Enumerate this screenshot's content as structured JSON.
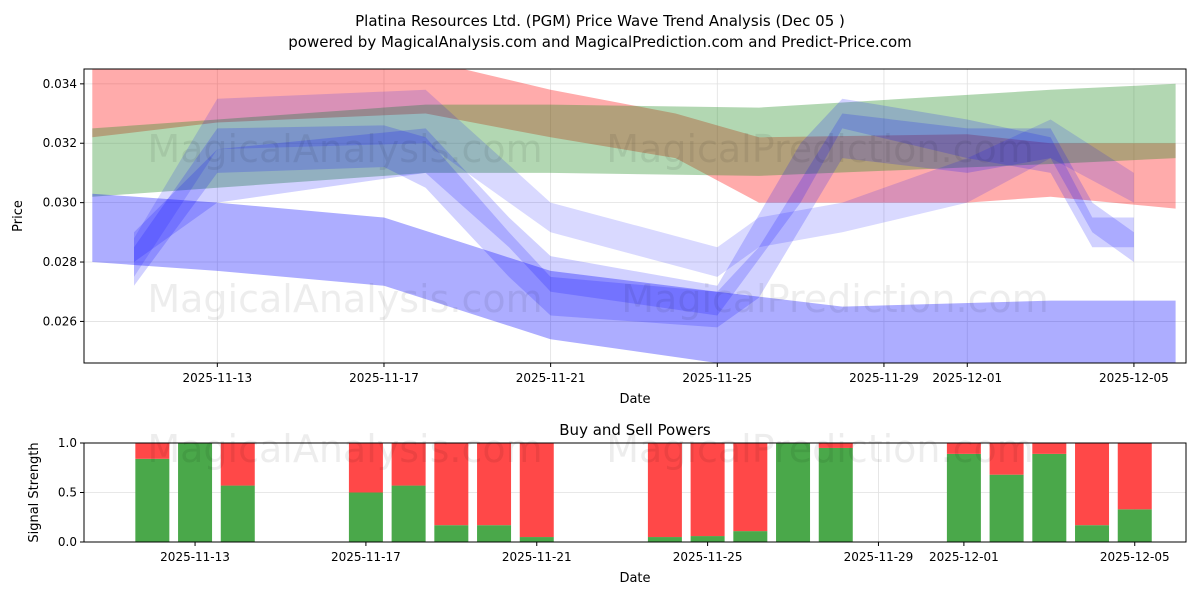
{
  "title_line1": "Platina Resources Ltd. (PGM) Price Wave Trend Analysis (Dec 05 )",
  "title_line2": "powered by MagicalAnalysis.com and MagicalPrediction.com and Predict-Price.com",
  "watermarks": [
    "MagicalAnalysis.com",
    "MagicalPrediction.com"
  ],
  "chart_data": [
    {
      "type": "area",
      "title": "",
      "xlabel": "Date",
      "ylabel": "Price",
      "xlim": [
        "2025-11-09.8",
        "2025-12-06.25"
      ],
      "ylim": [
        0.0246,
        0.0345
      ],
      "xticks": [
        "2025-11-13",
        "2025-11-17",
        "2025-11-21",
        "2025-11-25",
        "2025-11-29",
        "2025-12-01",
        "2025-12-05"
      ],
      "yticks": [
        "0.026",
        "0.028",
        "0.030",
        "0.032",
        "0.034"
      ],
      "grid": true,
      "bands": [
        {
          "name": "red",
          "color": "#ff0000",
          "opacity": 0.33,
          "points": [
            [
              "2025-11-10",
              0.0322,
              0.0346
            ],
            [
              "2025-11-13",
              0.0327,
              0.0348
            ],
            [
              "2025-11-18",
              0.033,
              0.0348
            ],
            [
              "2025-11-21",
              0.0322,
              0.0338
            ],
            [
              "2025-11-24",
              0.0315,
              0.033
            ],
            [
              "2025-11-26",
              0.03,
              0.0322
            ],
            [
              "2025-12-01",
              0.03,
              0.0323
            ],
            [
              "2025-12-03",
              0.0302,
              0.032
            ],
            [
              "2025-12-06",
              0.0298,
              0.032
            ]
          ]
        },
        {
          "name": "green",
          "color": "#228b22",
          "opacity": 0.35,
          "points": [
            [
              "2025-11-10",
              0.0302,
              0.0325
            ],
            [
              "2025-11-13",
              0.0305,
              0.0328
            ],
            [
              "2025-11-18",
              0.031,
              0.0333
            ],
            [
              "2025-11-21",
              0.031,
              0.0333
            ],
            [
              "2025-11-26",
              0.0309,
              0.0332
            ],
            [
              "2025-12-03",
              0.0313,
              0.0338
            ],
            [
              "2025-12-06",
              0.0315,
              0.034
            ]
          ]
        },
        {
          "name": "blue-low",
          "color": "#0000ff",
          "opacity": 0.32,
          "points": [
            [
              "2025-11-10",
              0.028,
              0.0303
            ],
            [
              "2025-11-13",
              0.0277,
              0.03
            ],
            [
              "2025-11-17",
              0.0272,
              0.0295
            ],
            [
              "2025-11-21",
              0.0254,
              0.0277
            ],
            [
              "2025-11-25",
              0.0246,
              0.027
            ],
            [
              "2025-11-28",
              0.0242,
              0.0265
            ],
            [
              "2025-12-03",
              0.0244,
              0.0267
            ],
            [
              "2025-12-06",
              0.0244,
              0.0267
            ]
          ]
        },
        {
          "name": "blue-wave-1",
          "color": "#0000ff",
          "opacity": 0.18,
          "points": [
            [
              "2025-11-11",
              0.0272,
              0.0285
            ],
            [
              "2025-11-13",
              0.031,
              0.0325
            ],
            [
              "2025-11-17",
              0.0312,
              0.0326
            ],
            [
              "2025-11-18",
              0.0305,
              0.0322
            ],
            [
              "2025-11-20",
              0.0275,
              0.029
            ],
            [
              "2025-11-21",
              0.0262,
              0.0275
            ],
            [
              "2025-11-25",
              0.0258,
              0.027
            ],
            [
              "2025-11-26",
              0.0268,
              0.0285
            ],
            [
              "2025-11-28",
              0.0315,
              0.033
            ],
            [
              "2025-12-01",
              0.031,
              0.0325
            ],
            [
              "2025-12-03",
              0.0315,
              0.0325
            ],
            [
              "2025-12-04",
              0.029,
              0.03
            ],
            [
              "2025-12-05",
              0.028,
              0.029
            ]
          ]
        },
        {
          "name": "blue-wave-2",
          "color": "#0000ff",
          "opacity": 0.15,
          "points": [
            [
              "2025-11-11",
              0.0275,
              0.0288
            ],
            [
              "2025-11-13",
              0.0318,
              0.0335
            ],
            [
              "2025-11-18",
              0.032,
              0.0338
            ],
            [
              "2025-11-21",
              0.029,
              0.03
            ],
            [
              "2025-11-25",
              0.0275,
              0.0285
            ],
            [
              "2025-11-26",
              0.0285,
              0.0295
            ],
            [
              "2025-11-28",
              0.029,
              0.03
            ],
            [
              "2025-12-01",
              0.03,
              0.0315
            ],
            [
              "2025-12-03",
              0.0315,
              0.0328
            ],
            [
              "2025-12-05",
              0.03,
              0.031
            ]
          ]
        },
        {
          "name": "blue-wave-3",
          "color": "#0000ff",
          "opacity": 0.18,
          "points": [
            [
              "2025-11-11",
              0.028,
              0.029
            ],
            [
              "2025-11-13",
              0.03,
              0.0318
            ],
            [
              "2025-11-18",
              0.031,
              0.0325
            ],
            [
              "2025-11-20",
              0.0285,
              0.0295
            ],
            [
              "2025-11-21",
              0.027,
              0.0282
            ],
            [
              "2025-11-25",
              0.0262,
              0.0272
            ],
            [
              "2025-11-27",
              0.03,
              0.032
            ],
            [
              "2025-11-28",
              0.0325,
              0.0335
            ],
            [
              "2025-12-01",
              0.0315,
              0.0328
            ],
            [
              "2025-12-03",
              0.031,
              0.0322
            ],
            [
              "2025-12-04",
              0.0285,
              0.0295
            ],
            [
              "2025-12-05",
              0.0285,
              0.0295
            ]
          ]
        }
      ]
    },
    {
      "type": "bar",
      "title": "Buy and Sell Powers",
      "xlabel": "Date",
      "ylabel": "Signal Strength",
      "xlim": [
        "2025-11-10.4",
        "2025-12-06.2"
      ],
      "ylim": [
        0,
        1
      ],
      "xticks": [
        "2025-11-13",
        "2025-11-17",
        "2025-11-21",
        "2025-11-25",
        "2025-11-29",
        "2025-12-01",
        "2025-12-05"
      ],
      "yticks": [
        "0.0",
        "0.5",
        "1.0"
      ],
      "buy_color": "#4aa84a",
      "sell_color": "#ff4848",
      "categories": [
        "2025-11-12",
        "2025-11-13",
        "2025-11-14",
        "2025-11-17",
        "2025-11-18",
        "2025-11-19",
        "2025-11-20",
        "2025-11-21",
        "2025-11-24",
        "2025-11-25",
        "2025-11-26",
        "2025-11-27",
        "2025-11-28",
        "2025-12-01",
        "2025-12-02",
        "2025-12-03",
        "2025-12-04",
        "2025-12-05"
      ],
      "series": [
        {
          "name": "Buy",
          "values": [
            0.84,
            1.0,
            0.57,
            0.5,
            0.57,
            0.17,
            0.17,
            0.05,
            0.05,
            0.06,
            0.11,
            1.0,
            0.95,
            0.89,
            0.68,
            0.89,
            0.17,
            0.33
          ]
        },
        {
          "name": "Sell",
          "values": [
            0.16,
            0.0,
            0.43,
            0.5,
            0.43,
            0.83,
            0.83,
            0.95,
            0.95,
            0.94,
            0.89,
            0.0,
            0.05,
            0.11,
            0.32,
            0.11,
            0.83,
            0.67
          ]
        }
      ]
    }
  ]
}
